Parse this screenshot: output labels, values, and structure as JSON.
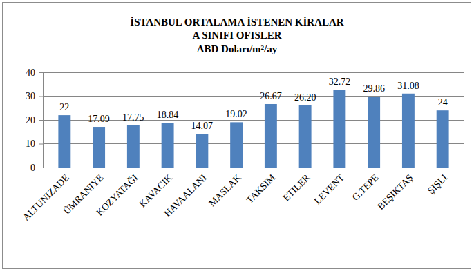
{
  "chart_data": {
    "type": "bar",
    "title": "İSTANBUL ORTALAMA İSTENEN KİRALAR",
    "subtitle": [
      "A SINIFI OFISLER",
      "ABD Doları/m²/ay"
    ],
    "categories": [
      "ALTUNIZADE",
      "ÜMRANIYE",
      "KOZYATAĞI",
      "KAVACIK",
      "HAVAALANI",
      "MASLAK",
      "TAKSIM",
      "ETILER",
      "LEVENT",
      "G.TEPE",
      "BEŞIKTAŞ",
      "ŞIŞLI"
    ],
    "values": [
      22,
      17.09,
      17.75,
      18.84,
      14.07,
      19.02,
      26.67,
      26.2,
      32.72,
      29.86,
      31.08,
      24
    ],
    "value_labels": [
      "22",
      "17.09",
      "17.75",
      "18.84",
      "14.07",
      "19.02",
      "26.67",
      "26.20",
      "32.72",
      "29.86",
      "31.08",
      "24"
    ],
    "color": "#4f81bd",
    "ylim": [
      0,
      40
    ],
    "yticks": [
      0,
      10,
      20,
      30,
      40
    ],
    "grid": true,
    "data_labels": true
  }
}
